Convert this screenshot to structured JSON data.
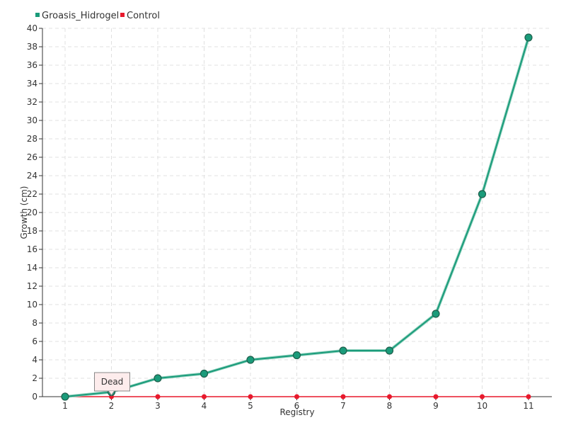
{
  "chart_data": {
    "type": "line",
    "title": "",
    "xlabel": "Registry",
    "ylabel": "Growth (cm)",
    "categories": [
      "1",
      "2",
      "3",
      "4",
      "5",
      "6",
      "7",
      "8",
      "9",
      "10",
      "11"
    ],
    "ylim": [
      0,
      40
    ],
    "ytick_step": 2,
    "grid": true,
    "legend_position": "top-left",
    "series": [
      {
        "name": "Groasis_Hidrogel",
        "color": "#1a9b7a",
        "values": [
          0,
          0.5,
          2,
          2.5,
          4,
          4.5,
          5,
          5,
          9,
          22,
          39
        ]
      },
      {
        "name": "Control",
        "color": "#e8192c",
        "values": [
          0,
          0,
          0,
          0,
          0,
          0,
          0,
          0,
          0,
          0,
          0
        ]
      }
    ],
    "annotations": [
      {
        "text": "Dead",
        "category": "2",
        "series": "Control"
      }
    ]
  }
}
